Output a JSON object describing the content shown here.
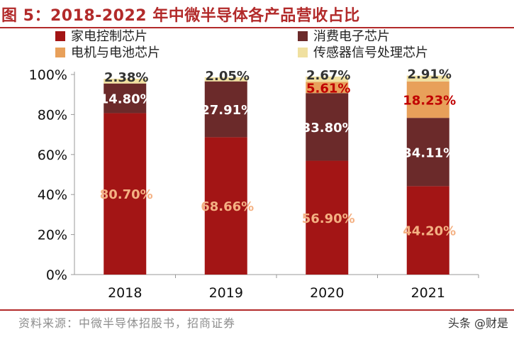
{
  "chart_data": {
    "type": "bar",
    "stacked": true,
    "title": "图 5：2018-2022 年中微半导体各产品营收占比",
    "categories": [
      "2018",
      "2019",
      "2020",
      "2021"
    ],
    "series": [
      {
        "name": "家电控制芯片",
        "color": "#a31515",
        "label_color": "#f4b183",
        "values": [
          80.7,
          68.66,
          56.9,
          44.2
        ],
        "labels": [
          "80.70%",
          "68.66%",
          "56.90%",
          "44.20%"
        ]
      },
      {
        "name": "消费电子芯片",
        "color": "#6b2a2a",
        "label_color": "#ffffff",
        "values": [
          14.8,
          27.91,
          33.8,
          34.11
        ],
        "labels": [
          "14.80%",
          "27.91%",
          "33.80%",
          "34.11%"
        ]
      },
      {
        "name": "电机与电池芯片",
        "color": "#e8a05a",
        "label_color": "#c00000",
        "values": [
          0,
          0,
          5.61,
          18.23
        ],
        "labels": [
          "",
          "",
          "5.61%",
          "18.23%"
        ]
      },
      {
        "name": "传感器信号处理芯片",
        "color": "#f0e0a0",
        "label_color": "#333333",
        "values": [
          2.38,
          2.05,
          2.67,
          2.91
        ],
        "labels": [
          "2.38%",
          "2.05%",
          "2.67%",
          "2.91%"
        ]
      }
    ],
    "yticks": [
      "0%",
      "20%",
      "40%",
      "60%",
      "80%",
      "100%"
    ],
    "ylim": [
      0,
      100
    ],
    "legend_position": "top"
  },
  "footer": {
    "source": "资料来源：中微半导体招股书，招商证券",
    "watermark": "头条 @财是"
  }
}
